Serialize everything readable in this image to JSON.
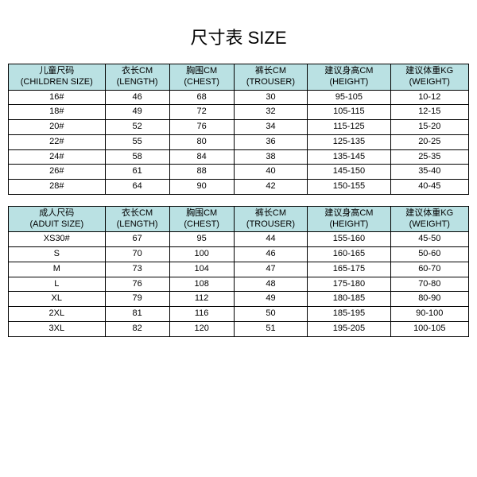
{
  "title": "尺寸表 SIZE",
  "header_bg": "#bae1e3",
  "columns_children": [
    {
      "cn": "儿童尺码",
      "en": "(CHILDREN SIZE)"
    },
    {
      "cn": "衣长CM",
      "en": "(LENGTH)"
    },
    {
      "cn": "胸围CM",
      "en": "(CHEST)"
    },
    {
      "cn": "裤长CM",
      "en": "(TROUSER)"
    },
    {
      "cn": "建议身高CM",
      "en": "(HEIGHT)"
    },
    {
      "cn": "建议体重KG",
      "en": "(WEIGHT)"
    }
  ],
  "columns_adult": [
    {
      "cn": "成人尺码",
      "en": "(ADUIT SIZE)"
    },
    {
      "cn": "衣长CM",
      "en": "(LENGTH)"
    },
    {
      "cn": "胸围CM",
      "en": "(CHEST)"
    },
    {
      "cn": "裤长CM",
      "en": "(TROUSER)"
    },
    {
      "cn": "建议身高CM",
      "en": "(HEIGHT)"
    },
    {
      "cn": "建议体重KG",
      "en": "(WEIGHT)"
    }
  ],
  "rows_children": [
    [
      "16#",
      "46",
      "68",
      "30",
      "95-105",
      "10-12"
    ],
    [
      "18#",
      "49",
      "72",
      "32",
      "105-115",
      "12-15"
    ],
    [
      "20#",
      "52",
      "76",
      "34",
      "115-125",
      "15-20"
    ],
    [
      "22#",
      "55",
      "80",
      "36",
      "125-135",
      "20-25"
    ],
    [
      "24#",
      "58",
      "84",
      "38",
      "135-145",
      "25-35"
    ],
    [
      "26#",
      "61",
      "88",
      "40",
      "145-150",
      "35-40"
    ],
    [
      "28#",
      "64",
      "90",
      "42",
      "150-155",
      "40-45"
    ]
  ],
  "rows_adult": [
    [
      "XS30#",
      "67",
      "95",
      "44",
      "155-160",
      "45-50"
    ],
    [
      "S",
      "70",
      "100",
      "46",
      "160-165",
      "50-60"
    ],
    [
      "M",
      "73",
      "104",
      "47",
      "165-175",
      "60-70"
    ],
    [
      "L",
      "76",
      "108",
      "48",
      "175-180",
      "70-80"
    ],
    [
      "XL",
      "79",
      "112",
      "49",
      "180-185",
      "80-90"
    ],
    [
      "2XL",
      "81",
      "116",
      "50",
      "185-195",
      "90-100"
    ],
    [
      "3XL",
      "82",
      "120",
      "51",
      "195-205",
      "100-105"
    ]
  ]
}
